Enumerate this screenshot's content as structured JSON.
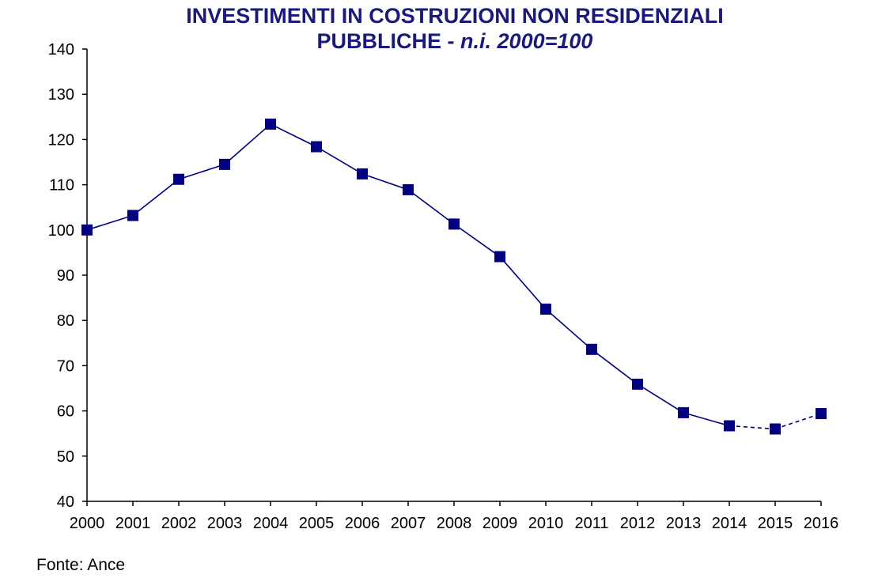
{
  "chart_data": {
    "type": "line",
    "title_line1": "INVESTIMENTI IN COSTRUZIONI NON RESIDENZIALI",
    "title_line2_plain": "PUBBLICHE - ",
    "title_line2_italic": "n.i. 2000=100",
    "xlabel": "",
    "ylabel": "",
    "x": [
      "2000",
      "2001",
      "2002",
      "2003",
      "2004",
      "2005",
      "2006",
      "2007",
      "2008",
      "2009",
      "2010",
      "2011",
      "2012",
      "2013",
      "2014",
      "2015",
      "2016"
    ],
    "series": [
      {
        "values": [
          100,
          103.2,
          111.2,
          114.5,
          123.4,
          118.4,
          112.4,
          108.9,
          101.3,
          94.1,
          82.5,
          73.6,
          65.9,
          59.6,
          56.7,
          56.0,
          59.4
        ],
        "dashed_from_index": 14
      }
    ],
    "ylim": [
      40,
      140
    ],
    "yticks": [
      40,
      50,
      60,
      70,
      80,
      90,
      100,
      110,
      120,
      130,
      140
    ],
    "grid": false,
    "legend": "none",
    "colors": {
      "series": "#000080",
      "title": "#1a1a7a",
      "axis": "#000000"
    }
  },
  "source": "Fonte: Ance"
}
